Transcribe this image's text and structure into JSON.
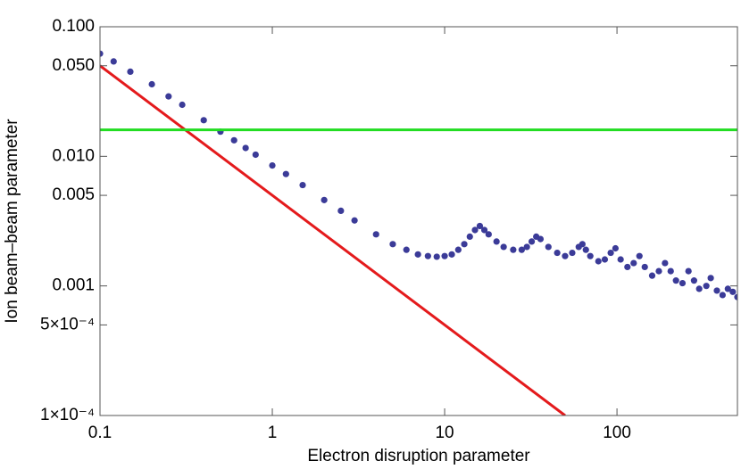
{
  "chart_data": {
    "type": "scatter",
    "x_label": "Electron disruption parameter",
    "y_label": "Ion beam–beam parameter",
    "xscale": "log",
    "yscale": "log",
    "xlim": [
      0.1,
      500
    ],
    "ylim": [
      0.0001,
      0.1
    ],
    "xticks": [
      0.1,
      1,
      10,
      100
    ],
    "yticks": [
      {
        "value": 0.1,
        "label": "0.100"
      },
      {
        "value": 0.05,
        "label": "0.050"
      },
      {
        "value": 0.01,
        "label": "0.010"
      },
      {
        "value": 0.005,
        "label": "0.005"
      },
      0.001,
      {
        "value": 0.0005,
        "label": "5×10⁻⁴"
      },
      {
        "value": 0.0001,
        "label": "1×10⁻⁴"
      }
    ],
    "series": [
      {
        "marker": "dot",
        "color": "#3b3b98",
        "x": [
          0.1,
          0.12,
          0.15,
          0.2,
          0.25,
          0.3,
          0.4,
          0.5,
          0.6,
          0.7,
          0.8,
          1,
          1.2,
          1.5,
          2,
          2.5,
          3,
          4,
          5,
          6,
          7,
          8,
          9,
          10,
          11,
          12,
          13,
          14,
          15,
          16,
          17,
          18,
          20,
          22,
          25,
          28,
          30,
          32,
          34,
          36,
          40,
          45,
          50,
          55,
          60,
          63,
          66,
          70,
          78,
          85,
          92,
          98,
          105,
          115,
          125,
          135,
          145,
          160,
          175,
          190,
          205,
          220,
          240,
          260,
          280,
          300,
          330,
          350,
          380,
          410,
          440,
          470,
          500
        ],
        "values": [
          0.062,
          0.054,
          0.045,
          0.036,
          0.029,
          0.025,
          0.019,
          0.0155,
          0.0133,
          0.0116,
          0.0103,
          0.0085,
          0.0073,
          0.006,
          0.0046,
          0.0038,
          0.0032,
          0.0025,
          0.0021,
          0.0019,
          0.00175,
          0.0017,
          0.00168,
          0.0017,
          0.00175,
          0.0019,
          0.0021,
          0.0024,
          0.0027,
          0.0029,
          0.0027,
          0.0025,
          0.0022,
          0.002,
          0.0019,
          0.0019,
          0.002,
          0.0022,
          0.0024,
          0.0023,
          0.002,
          0.0018,
          0.0017,
          0.0018,
          0.002,
          0.0021,
          0.0019,
          0.0017,
          0.00155,
          0.0016,
          0.0018,
          0.00195,
          0.0016,
          0.0014,
          0.0015,
          0.0017,
          0.0014,
          0.0012,
          0.0013,
          0.0015,
          0.0013,
          0.0011,
          0.00105,
          0.0013,
          0.0011,
          0.00095,
          0.001,
          0.00115,
          0.00092,
          0.00085,
          0.00095,
          0.0009,
          0.00082
        ]
      },
      {
        "marker": "line",
        "color": "#e41a1c",
        "x": [
          0.1,
          50
        ],
        "values": [
          0.05,
          0.0001
        ]
      },
      {
        "marker": "line",
        "color": "#22dd22",
        "x": [
          0.1,
          500
        ],
        "values": [
          0.016,
          0.016
        ]
      }
    ]
  }
}
